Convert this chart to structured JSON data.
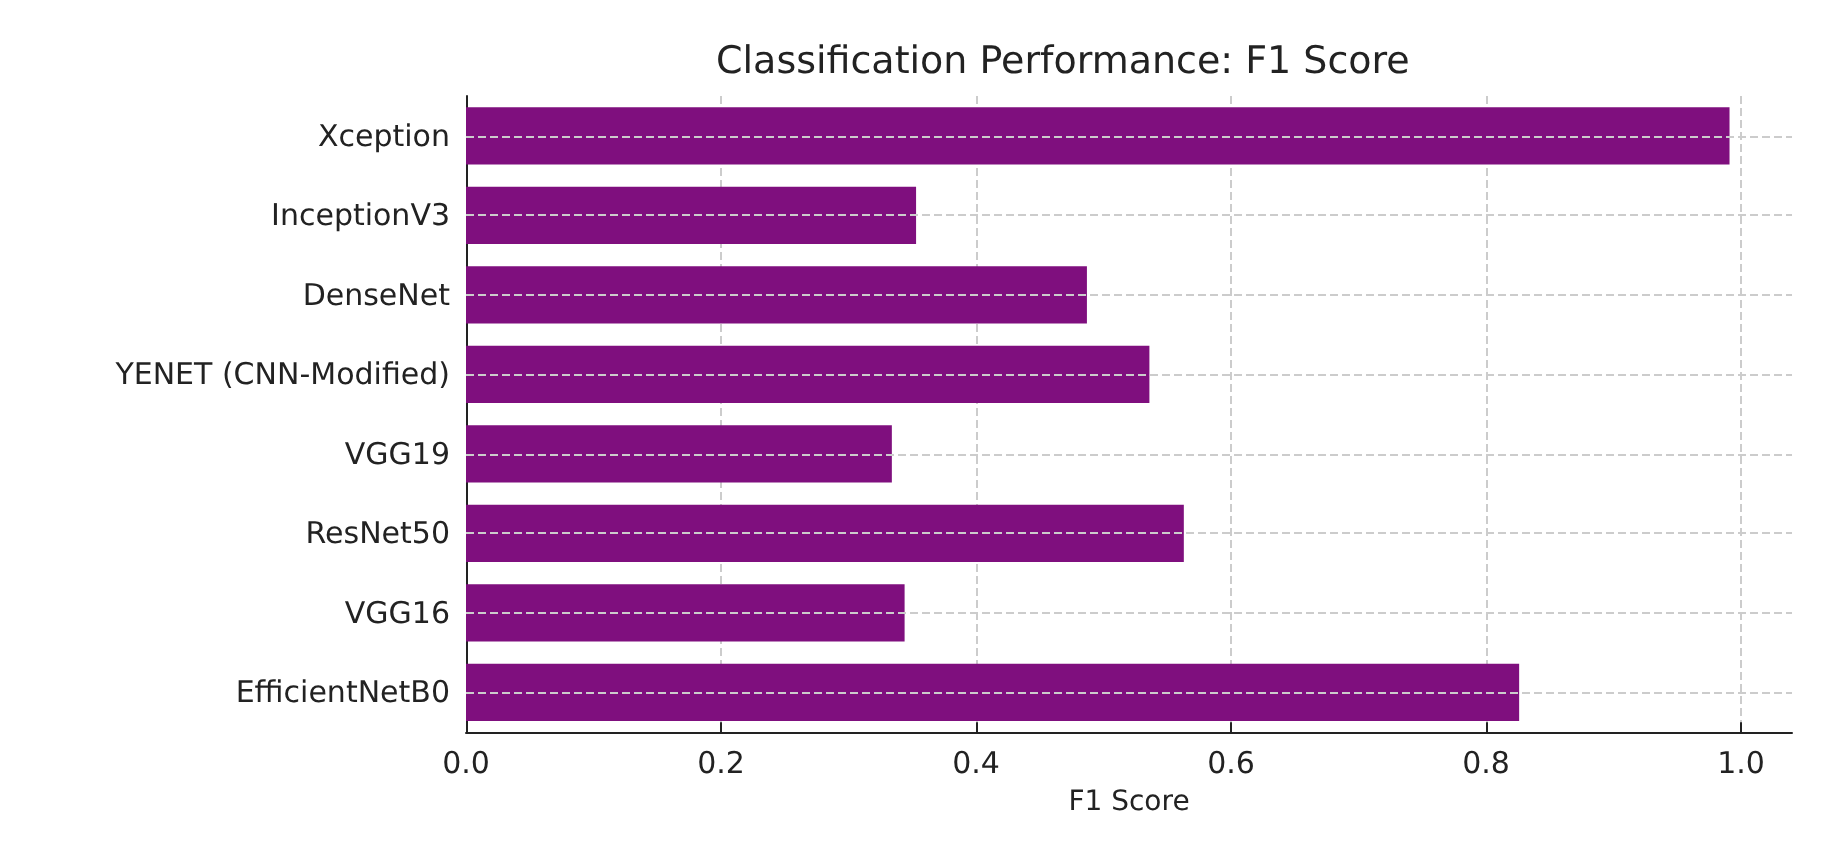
{
  "chart_data": {
    "type": "bar",
    "orientation": "horizontal",
    "title": "Classification Performance: F1 Score",
    "xlabel": "F1 Score",
    "categories": [
      "Xception",
      "InceptionV3",
      "DenseNet",
      "YENET (CNN-Modified)",
      "VGG19",
      "ResNet50",
      "VGG16",
      "EfficientNetB0"
    ],
    "values": [
      0.991,
      0.353,
      0.487,
      0.536,
      0.334,
      0.563,
      0.344,
      0.826
    ],
    "color": "#7f0f7e",
    "xlim": [
      0,
      1.04
    ],
    "xticks": [
      {
        "value": 0,
        "label": "0.0"
      },
      {
        "value": 0.2,
        "label": "0.2"
      },
      {
        "value": 0.4,
        "label": "0.4"
      },
      {
        "value": 0.6,
        "label": "0.6"
      },
      {
        "value": 0.8,
        "label": "0.8"
      },
      {
        "value": 1,
        "label": "1.0"
      }
    ],
    "grid": true,
    "line_style": "dashed"
  }
}
